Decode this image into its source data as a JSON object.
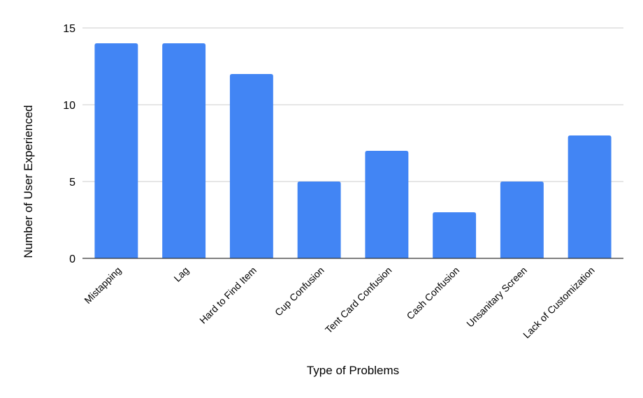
{
  "chart_data": {
    "type": "bar",
    "categories": [
      "Mistapping",
      "Lag",
      "Hard to Find Item",
      "Cup Confusion",
      "Tent Card Confusion",
      "Cash Confusion",
      "Unsanitary Screen",
      "Lack of Customization"
    ],
    "values": [
      14,
      14,
      12,
      5,
      7,
      3,
      5,
      8
    ],
    "xlabel": "Type of Problems",
    "ylabel": "Number of User Experienced",
    "ylim": [
      0,
      15
    ],
    "yticks": [
      0,
      5,
      10,
      15
    ],
    "grid": true,
    "legend": "none",
    "colors": {
      "bar": "#4285f4",
      "grid": "#cccccc",
      "axis": "#333333"
    }
  }
}
